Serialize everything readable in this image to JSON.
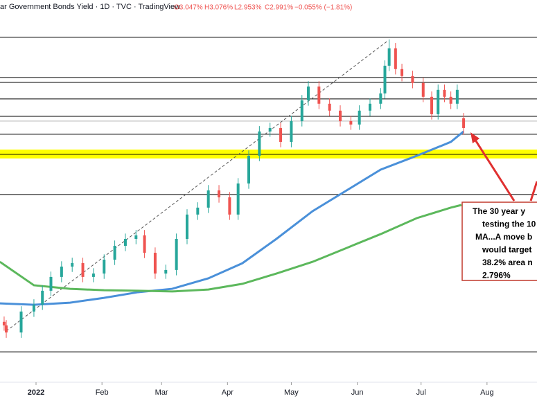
{
  "chart_data": {
    "type": "candlestick",
    "title": "ar Government Bonds Yield · 1D · TVC · TradingView",
    "ohlc_labels": [
      "O3.047%",
      "H3.076%",
      "L2.953%",
      "C2.991%",
      "−0.055% (−1.81%)"
    ],
    "xlim": [
      -16.94,
      235.5
    ],
    "ylim": [
      1.56,
      3.712
    ],
    "xticks": [
      {
        "value": 0,
        "label": "2022"
      },
      {
        "value": 31,
        "label": "Feb"
      },
      {
        "value": 59,
        "label": "Mar"
      },
      {
        "value": 90,
        "label": "Apr"
      },
      {
        "value": 120,
        "label": "May"
      },
      {
        "value": 151,
        "label": "Jun"
      },
      {
        "value": 181,
        "label": "Jul"
      },
      {
        "value": 212,
        "label": "Aug"
      }
    ],
    "up_color": "#26a69a",
    "down_color": "#ef5350",
    "candles": {
      "x": [
        -15,
        -14,
        -7,
        -1,
        3,
        7,
        12,
        17,
        22,
        27,
        32,
        37,
        42,
        47,
        51,
        56,
        61,
        66,
        71,
        76,
        81,
        86,
        91,
        95,
        100,
        105,
        110,
        115,
        120,
        125,
        128,
        133,
        138,
        143,
        148,
        152,
        157,
        162,
        164,
        166,
        169,
        172,
        177,
        182,
        186,
        189,
        192,
        195,
        198,
        201
      ],
      "open": [
        1.9,
        1.88,
        1.84,
        1.958,
        1.997,
        2.075,
        2.153,
        2.211,
        2.231,
        2.153,
        2.172,
        2.25,
        2.328,
        2.367,
        2.387,
        2.289,
        2.172,
        2.192,
        2.367,
        2.504,
        2.543,
        2.64,
        2.601,
        2.504,
        2.679,
        2.835,
        2.972,
        2.991,
        2.913,
        3.03,
        3.147,
        3.225,
        3.128,
        3.089,
        3.03,
        3.011,
        3.089,
        3.128,
        3.186,
        3.342,
        3.44,
        3.323,
        3.284,
        3.245,
        3.167,
        3.069,
        3.206,
        3.167,
        3.128,
        3.047
      ],
      "high": [
        1.93,
        1.91,
        1.988,
        2.027,
        2.105,
        2.183,
        2.241,
        2.261,
        2.261,
        2.202,
        2.28,
        2.358,
        2.397,
        2.417,
        2.417,
        2.319,
        2.222,
        2.397,
        2.534,
        2.573,
        2.67,
        2.67,
        2.631,
        2.709,
        2.865,
        3.002,
        3.021,
        3.021,
        3.06,
        3.177,
        3.255,
        3.255,
        3.158,
        3.119,
        3.06,
        3.119,
        3.158,
        3.216,
        3.372,
        3.49,
        3.47,
        3.353,
        3.314,
        3.275,
        3.197,
        3.236,
        3.236,
        3.197,
        3.236,
        3.076
      ],
      "low": [
        1.85,
        1.81,
        1.81,
        1.928,
        1.967,
        2.045,
        2.123,
        2.181,
        2.123,
        2.123,
        2.142,
        2.22,
        2.298,
        2.337,
        2.259,
        2.142,
        2.142,
        2.162,
        2.337,
        2.474,
        2.513,
        2.571,
        2.474,
        2.474,
        2.649,
        2.805,
        2.942,
        2.883,
        2.883,
        3.0,
        3.117,
        3.098,
        3.059,
        3.0,
        2.981,
        2.981,
        3.059,
        3.098,
        3.156,
        3.312,
        3.293,
        3.254,
        3.215,
        3.137,
        3.039,
        3.039,
        3.137,
        3.098,
        3.098,
        2.953
      ],
      "close": [
        1.88,
        1.84,
        1.958,
        1.997,
        2.075,
        2.153,
        2.211,
        2.231,
        2.153,
        2.172,
        2.25,
        2.328,
        2.367,
        2.387,
        2.289,
        2.172,
        2.192,
        2.367,
        2.504,
        2.543,
        2.64,
        2.601,
        2.504,
        2.679,
        2.835,
        2.972,
        2.991,
        2.913,
        3.03,
        3.147,
        3.225,
        3.128,
        3.089,
        3.03,
        3.011,
        3.089,
        3.128,
        3.186,
        3.342,
        3.44,
        3.323,
        3.284,
        3.245,
        3.167,
        3.069,
        3.206,
        3.167,
        3.128,
        3.206,
        2.991
      ]
    },
    "series": [
      {
        "color": "#4a90d9",
        "x": [
          -17,
          -1,
          16,
          32,
          48,
          64,
          81,
          97,
          113,
          130,
          146,
          162,
          179,
          195,
          201
        ],
        "values": [
          2.004,
          1.996,
          2.008,
          2.035,
          2.067,
          2.086,
          2.145,
          2.23,
          2.367,
          2.523,
          2.64,
          2.757,
          2.835,
          2.913,
          2.972
        ]
      },
      {
        "color": "#5cb85c",
        "x": [
          -17,
          -1,
          16,
          32,
          48,
          64,
          81,
          97,
          113,
          130,
          146,
          162,
          179,
          195,
          200
        ],
        "values": [
          2.238,
          2.106,
          2.086,
          2.078,
          2.075,
          2.071,
          2.082,
          2.114,
          2.172,
          2.238,
          2.316,
          2.394,
          2.484,
          2.543,
          2.558
        ]
      }
    ],
    "trendline": {
      "x": [
        -14,
        165
      ],
      "values": [
        1.848,
        3.479
      ]
    },
    "levels": [
      3.502,
      3.276,
      3.248,
      3.155,
      3.057,
      3.03,
      2.956,
      2.843,
      2.617,
      1.731
    ],
    "level_colors": [
      "#000000",
      "#000000",
      "#000000",
      "#000000",
      "#000000",
      "#b0b0b0",
      "#000000",
      "#000000",
      "#000000",
      "#000000"
    ],
    "band": [
      2.82,
      2.87
    ],
    "band_color": "#ffff00",
    "annotation": [
      "The 30 year y",
      "testing the 10",
      "MA...A move b",
      "would target",
      "38.2% area n",
      "2.796%"
    ]
  }
}
